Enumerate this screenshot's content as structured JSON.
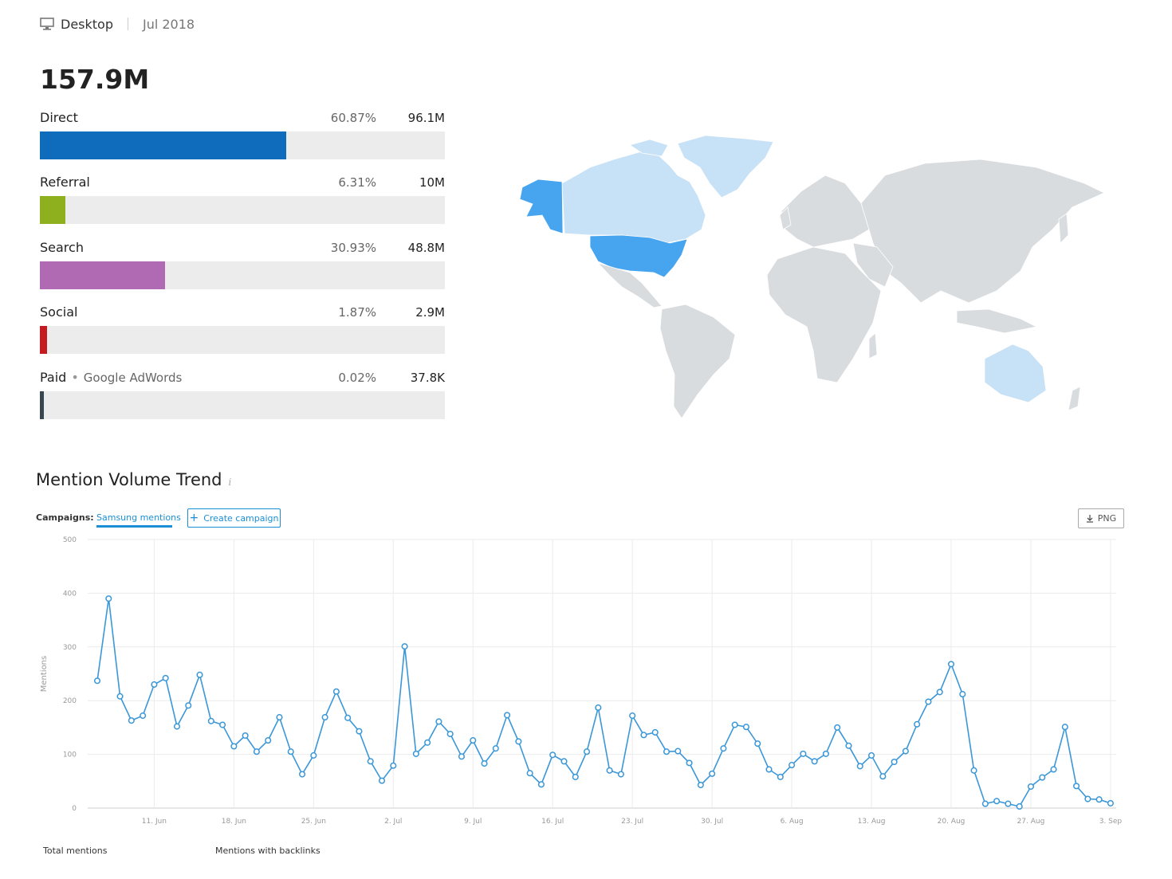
{
  "header": {
    "device": "Desktop",
    "date": "Jul 2018"
  },
  "traffic": {
    "total": "157.9M",
    "sources": [
      {
        "name": "Direct",
        "sub": "",
        "pct": "60.87%",
        "value": "96.1M",
        "share": 60.87,
        "color": "#0f6bbb"
      },
      {
        "name": "Referral",
        "sub": "",
        "pct": "6.31%",
        "value": "10M",
        "share": 6.31,
        "color": "#8fb01e"
      },
      {
        "name": "Search",
        "sub": "",
        "pct": "30.93%",
        "value": "48.8M",
        "share": 30.93,
        "color": "#b06ab3"
      },
      {
        "name": "Social",
        "sub": "",
        "pct": "1.87%",
        "value": "2.9M",
        "share": 1.87,
        "color": "#c41b20"
      },
      {
        "name": "Paid",
        "sub": "Google AdWords",
        "pct": "0.02%",
        "value": "37.8K",
        "share": 0.02,
        "color": "#37474f"
      }
    ]
  },
  "map": {
    "colors": {
      "base": "#d9dcdf",
      "highlight": "#47a4ee",
      "light": "#c7e1f6"
    },
    "highlighted": [
      "United States",
      "Alaska"
    ],
    "light": [
      "Canada",
      "Greenland",
      "Australia"
    ]
  },
  "trend": {
    "title": "Mention Volume Trend",
    "info_icon": "i",
    "campaigns_label": "Campaigns:",
    "active_campaign": "Samsung mentions",
    "create_label": "Create campaign",
    "png_label": "PNG",
    "legend": [
      "Total mentions",
      "Mentions with backlinks"
    ]
  },
  "chart_data": {
    "type": "line",
    "ylabel": "Mentions",
    "ylim": [
      0,
      500
    ],
    "yticks": [
      0,
      100,
      200,
      300,
      400,
      500
    ],
    "x_start": "6. Jun",
    "xticks": [
      "11. Jun",
      "18. Jun",
      "25. Jun",
      "2. Jul",
      "9. Jul",
      "16. Jul",
      "23. Jul",
      "30. Jul",
      "6. Aug",
      "13. Aug",
      "20. Aug",
      "27. Aug",
      "3. Sep"
    ],
    "line_color": "#3a97d8",
    "series": [
      {
        "values": [
          237,
          390,
          208,
          163,
          172,
          230,
          242,
          152,
          191,
          248,
          162,
          155,
          115,
          135,
          105,
          126,
          169,
          105,
          63,
          98,
          169,
          217,
          168,
          143,
          87,
          51,
          79,
          301,
          101,
          122,
          161,
          138,
          96,
          126,
          83,
          111,
          173,
          124,
          65,
          44,
          99,
          87,
          58,
          105,
          187,
          70,
          63,
          172,
          136,
          141,
          105,
          106,
          84,
          43,
          64,
          111,
          155,
          151,
          120,
          72,
          58,
          80,
          101,
          87,
          101,
          150,
          116,
          78,
          98,
          59,
          86,
          106,
          156,
          198,
          216,
          268,
          212,
          70,
          8,
          13,
          8,
          3,
          40,
          57,
          72,
          151,
          41,
          17,
          16,
          9
        ]
      }
    ]
  }
}
